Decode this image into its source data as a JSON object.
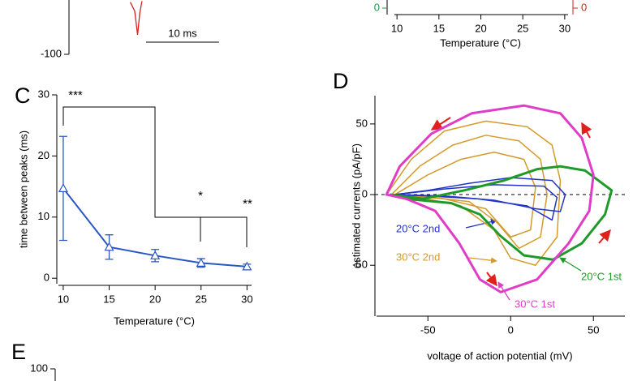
{
  "chart_data": [
    {
      "type": "trace",
      "xlim": [
        0,
        32.8
      ],
      "ylim": [
        -100,
        -50
      ],
      "yticks": [
        -100
      ],
      "series": [
        {
          "color": "#d42020",
          "x": [
            8.4,
            9.0,
            9.4,
            9.7,
            10.0
          ],
          "values": [
            -52,
            -60,
            -82,
            -62,
            -51
          ]
        }
      ],
      "scalebar": {
        "length": 10,
        "label": "10 ms"
      }
    },
    {
      "type": "line",
      "xlim": [
        9.5,
        30.4
      ],
      "xticks": [
        10,
        15,
        20,
        25,
        30
      ],
      "xlabel": "Temperature (°C)",
      "ylim": [
        0,
        1
      ],
      "yticks": [
        0
      ],
      "y2ticks": [
        0
      ],
      "y_color": "#1a9a4a",
      "y2_color": "#d42020"
    },
    {
      "type": "errorline",
      "panel": "C",
      "xlim": [
        9.3,
        30.5
      ],
      "ylim": [
        -0.9,
        30
      ],
      "xticks": [
        10,
        15,
        20,
        25,
        30
      ],
      "yticks": [
        0,
        10,
        20,
        30
      ],
      "xlabel": "Temperature (°C)",
      "ylabel": "time between peaks (ms)",
      "x": [
        10,
        15,
        20,
        25,
        30
      ],
      "values": [
        14.7,
        5.1,
        3.7,
        2.5,
        1.9
      ],
      "errors": [
        8.5,
        2.0,
        1.0,
        0.7,
        0.4
      ],
      "color": "#2a55c4",
      "annotations": [
        "***",
        "*",
        "**"
      ]
    },
    {
      "type": "loop",
      "panel": "D",
      "xlim": [
        -82,
        69
      ],
      "ylim": [
        -86,
        70
      ],
      "xticks": [
        -50,
        0,
        50
      ],
      "yticks": [
        -50,
        0,
        50
      ],
      "zero_line": true,
      "xlabel": "voltage of action potential (mV)",
      "ylabel": "estimated currents (pA/pF)",
      "series": [
        {
          "name": "30°C 2nd",
          "color": "#d49a2a",
          "loops": [
            {
              "x": [
                -75,
                -60,
                -40,
                -15,
                10,
                25,
                30,
                28,
                15,
                0,
                -10,
                -30,
                -55
              ],
              "values": [
                0,
                25,
                45,
                52,
                48,
                35,
                10,
                -30,
                -50,
                -45,
                -25,
                -8,
                -2
              ]
            },
            {
              "x": [
                -72,
                -55,
                -35,
                -15,
                5,
                18,
                22,
                18,
                5,
                -8,
                -25,
                -55
              ],
              "values": [
                0,
                20,
                35,
                42,
                38,
                25,
                0,
                -30,
                -38,
                -20,
                -5,
                -1
              ]
            },
            {
              "x": [
                -70,
                -50,
                -30,
                -10,
                8,
                15,
                12,
                0,
                -15,
                -40
              ],
              "values": [
                0,
                14,
                25,
                30,
                25,
                5,
                -25,
                -30,
                -10,
                -3
              ]
            }
          ]
        },
        {
          "name": "20°C 2nd",
          "color": "#2233c8",
          "loops": [
            {
              "x": [
                -70,
                -50,
                -25,
                0,
                25,
                33,
                30,
                15,
                -10,
                -40
              ],
              "values": [
                0,
                3,
                8,
                12,
                10,
                0,
                -12,
                -10,
                -4,
                -1
              ]
            },
            {
              "x": [
                -70,
                -40,
                -10,
                20,
                28,
                25,
                10,
                -20,
                -50
              ],
              "values": [
                0,
                4,
                7,
                6,
                -2,
                -18,
                -8,
                -3,
                -1
              ]
            }
          ]
        },
        {
          "name": "20°C 1st",
          "color": "#1f9a2a",
          "loops": [
            {
              "x": [
                -72.5,
                -53,
                -28,
                -4,
                16,
                30,
                45,
                61,
                57,
                43,
                25.5,
                8,
                -6.4,
                -18.6,
                -36,
                -63
              ],
              "values": [
                0,
                -3,
                3,
                10,
                18,
                20,
                17,
                3,
                -14,
                -34.5,
                -46,
                -43,
                -29,
                -14,
                -6,
                -3
              ]
            }
          ]
        },
        {
          "name": "30°C 1st",
          "color": "#e03cc8",
          "loops": [
            {
              "x": [
                -75,
                -67,
                -48,
                -23.5,
                8,
                30,
                43,
                50,
                47.5,
                35,
                16,
                -6,
                -18.6,
                -31,
                -45.6,
                -63
              ],
              "values": [
                0,
                20,
                43,
                57.5,
                63,
                57.5,
                40,
                14,
                -11.5,
                -34.5,
                -60,
                -69,
                -60,
                -34.5,
                -11.5,
                -3
              ]
            }
          ]
        }
      ]
    },
    {
      "type": "line",
      "panel": "E",
      "ylim": [
        0,
        100
      ],
      "yticks": [
        100
      ]
    }
  ]
}
